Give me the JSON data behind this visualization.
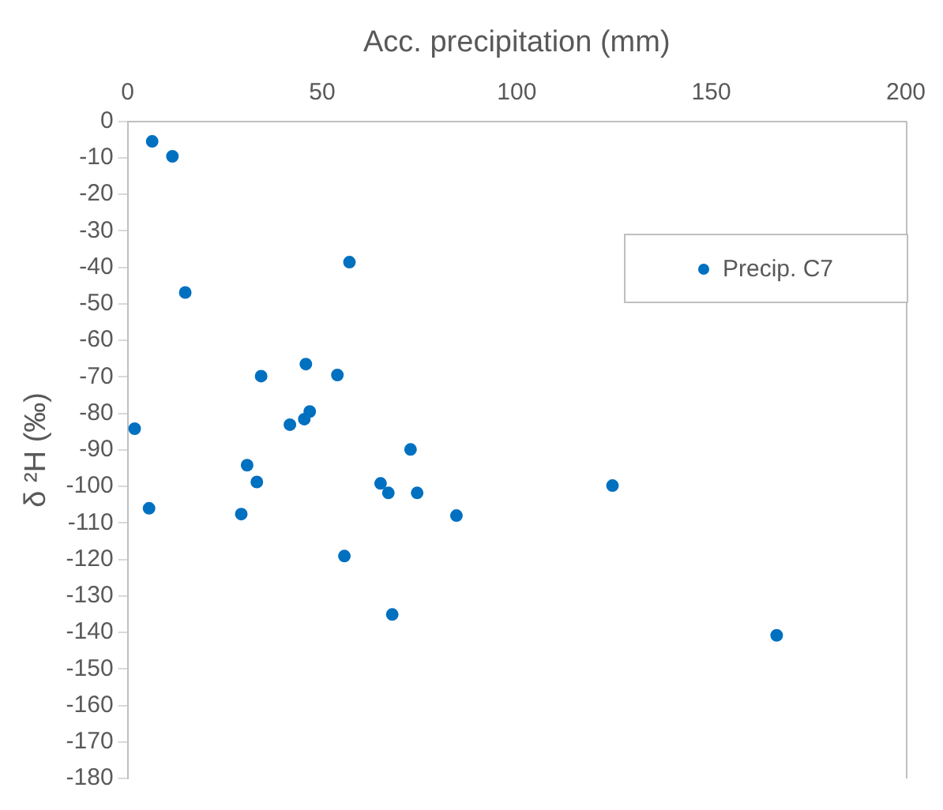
{
  "chart_data": {
    "type": "scatter",
    "xlabel": "Acc. precipitation (mm)",
    "ylabel": "δ ²H (‰)",
    "xlim": [
      0,
      200
    ],
    "xticks": [
      0,
      50,
      100,
      150,
      200
    ],
    "ylim": [
      -180,
      0
    ],
    "yticks": [
      0,
      -10,
      -20,
      -30,
      -40,
      -50,
      -60,
      -70,
      -80,
      -90,
      -100,
      -110,
      -120,
      -130,
      -140,
      -150,
      -160,
      -170,
      -180
    ],
    "grid": false,
    "legend": "top right",
    "marker": "circle",
    "series": [
      {
        "name": "Precip. C7",
        "color": "#0070c0",
        "x": [
          6.3,
          11.5,
          14.8,
          57,
          1.8,
          34.3,
          45.8,
          53.9,
          46.8,
          45.4,
          41.7,
          72.7,
          30.7,
          33.2,
          65,
          67,
          74.4,
          5.5,
          29.2,
          84.5,
          55.7,
          68,
          124.6,
          166.8
        ],
        "values": [
          -5.5,
          -9.6,
          -46.9,
          -38.6,
          -84.2,
          -69.8,
          -66.5,
          -69.5,
          -79.5,
          -81.6,
          -83.1,
          -89.9,
          -94.2,
          -98.8,
          -99.2,
          -101.8,
          -101.8,
          -106,
          -107.6,
          -108,
          -119.1,
          -135.1,
          -99.8,
          -140.8
        ]
      }
    ]
  }
}
